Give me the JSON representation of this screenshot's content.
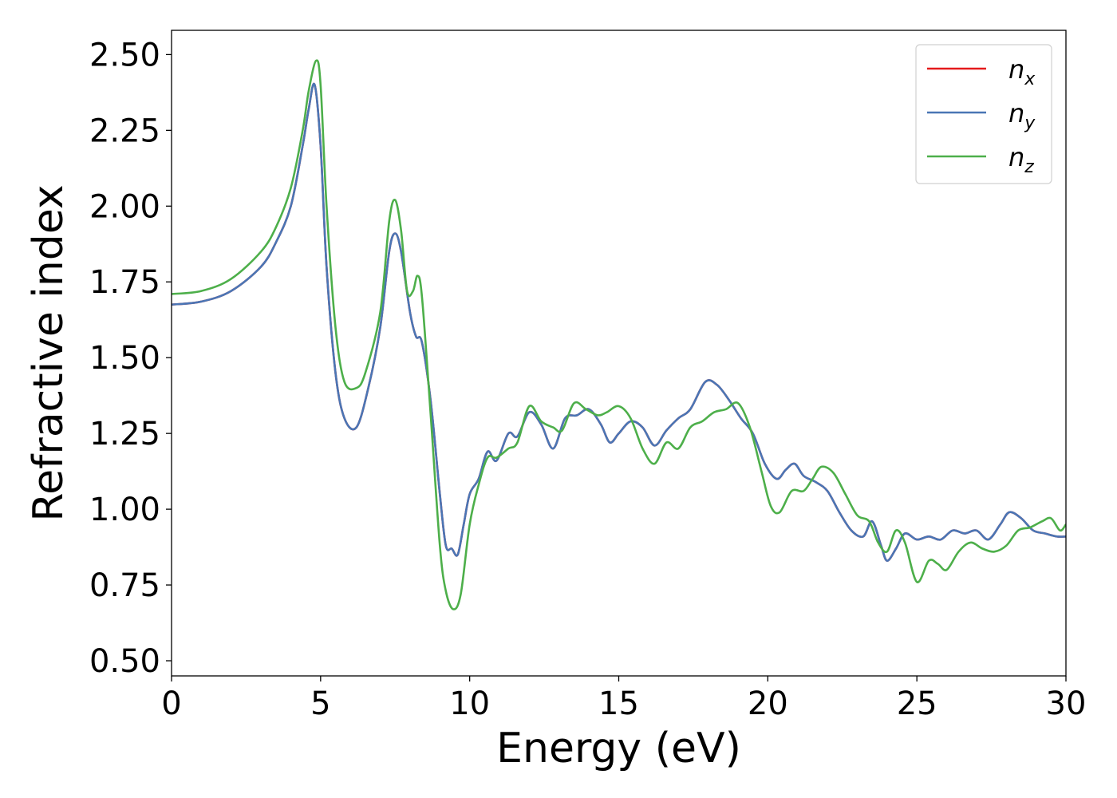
{
  "chart_data": {
    "type": "line",
    "xlabel": "Energy (eV)",
    "ylabel": "Refractive index",
    "xlim": [
      0,
      30
    ],
    "ylim": [
      0.45,
      2.58
    ],
    "xticks": [
      "0",
      "5",
      "10",
      "15",
      "20",
      "25",
      "30"
    ],
    "xtick_values": [
      0,
      5,
      10,
      15,
      20,
      25,
      30
    ],
    "yticks": [
      "0.50",
      "0.75",
      "1.00",
      "1.25",
      "1.50",
      "1.75",
      "2.00",
      "2.25",
      "2.50"
    ],
    "ytick_values": [
      0.5,
      0.75,
      1.0,
      1.25,
      1.5,
      1.75,
      2.0,
      2.25,
      2.5
    ],
    "grid": false,
    "legend": {
      "placement": "top-right"
    },
    "series": [
      {
        "name": "n",
        "subscript": "x",
        "color": "#e41a1c",
        "points": [
          [
            0,
            1.675
          ],
          [
            1,
            1.685
          ],
          [
            2,
            1.72
          ],
          [
            3,
            1.8
          ],
          [
            3.5,
            1.88
          ],
          [
            4,
            2.0
          ],
          [
            4.4,
            2.2
          ],
          [
            4.6,
            2.32
          ],
          [
            4.8,
            2.4
          ],
          [
            5.0,
            2.2
          ],
          [
            5.2,
            1.8
          ],
          [
            5.5,
            1.45
          ],
          [
            5.8,
            1.3
          ],
          [
            6.2,
            1.27
          ],
          [
            6.6,
            1.4
          ],
          [
            7.0,
            1.6
          ],
          [
            7.3,
            1.85
          ],
          [
            7.5,
            1.91
          ],
          [
            7.7,
            1.85
          ],
          [
            8.0,
            1.65
          ],
          [
            8.2,
            1.57
          ],
          [
            8.4,
            1.55
          ],
          [
            8.7,
            1.35
          ],
          [
            9.0,
            1.05
          ],
          [
            9.2,
            0.88
          ],
          [
            9.4,
            0.87
          ],
          [
            9.6,
            0.85
          ],
          [
            9.8,
            0.95
          ],
          [
            10.0,
            1.05
          ],
          [
            10.3,
            1.1
          ],
          [
            10.6,
            1.19
          ],
          [
            10.9,
            1.16
          ],
          [
            11.3,
            1.25
          ],
          [
            11.6,
            1.24
          ],
          [
            12.0,
            1.32
          ],
          [
            12.4,
            1.28
          ],
          [
            12.8,
            1.2
          ],
          [
            13.2,
            1.3
          ],
          [
            13.6,
            1.31
          ],
          [
            14.0,
            1.33
          ],
          [
            14.4,
            1.28
          ],
          [
            14.7,
            1.22
          ],
          [
            15.0,
            1.25
          ],
          [
            15.4,
            1.29
          ],
          [
            15.8,
            1.27
          ],
          [
            16.2,
            1.21
          ],
          [
            16.6,
            1.26
          ],
          [
            17.0,
            1.3
          ],
          [
            17.4,
            1.33
          ],
          [
            17.9,
            1.42
          ],
          [
            18.3,
            1.41
          ],
          [
            18.7,
            1.36
          ],
          [
            19.1,
            1.3
          ],
          [
            19.5,
            1.25
          ],
          [
            19.9,
            1.15
          ],
          [
            20.3,
            1.1
          ],
          [
            20.6,
            1.13
          ],
          [
            20.9,
            1.15
          ],
          [
            21.2,
            1.11
          ],
          [
            21.6,
            1.09
          ],
          [
            22.0,
            1.06
          ],
          [
            22.4,
            0.99
          ],
          [
            22.8,
            0.93
          ],
          [
            23.2,
            0.91
          ],
          [
            23.5,
            0.96
          ],
          [
            23.8,
            0.88
          ],
          [
            24.0,
            0.83
          ],
          [
            24.3,
            0.87
          ],
          [
            24.6,
            0.92
          ],
          [
            25.0,
            0.9
          ],
          [
            25.4,
            0.91
          ],
          [
            25.8,
            0.9
          ],
          [
            26.2,
            0.93
          ],
          [
            26.6,
            0.92
          ],
          [
            27.0,
            0.93
          ],
          [
            27.4,
            0.9
          ],
          [
            27.8,
            0.95
          ],
          [
            28.1,
            0.99
          ],
          [
            28.5,
            0.97
          ],
          [
            28.9,
            0.93
          ],
          [
            29.3,
            0.92
          ],
          [
            29.7,
            0.91
          ],
          [
            30.0,
            0.91
          ]
        ]
      },
      {
        "name": "n",
        "subscript": "y",
        "color": "#4a76b5",
        "points": [
          [
            0,
            1.675
          ],
          [
            1,
            1.685
          ],
          [
            2,
            1.72
          ],
          [
            3,
            1.8
          ],
          [
            3.5,
            1.88
          ],
          [
            4,
            2.0
          ],
          [
            4.4,
            2.2
          ],
          [
            4.6,
            2.32
          ],
          [
            4.8,
            2.4
          ],
          [
            5.0,
            2.2
          ],
          [
            5.2,
            1.8
          ],
          [
            5.5,
            1.45
          ],
          [
            5.8,
            1.3
          ],
          [
            6.2,
            1.27
          ],
          [
            6.6,
            1.4
          ],
          [
            7.0,
            1.6
          ],
          [
            7.3,
            1.85
          ],
          [
            7.5,
            1.91
          ],
          [
            7.7,
            1.85
          ],
          [
            8.0,
            1.65
          ],
          [
            8.2,
            1.57
          ],
          [
            8.4,
            1.55
          ],
          [
            8.7,
            1.35
          ],
          [
            9.0,
            1.05
          ],
          [
            9.2,
            0.88
          ],
          [
            9.4,
            0.87
          ],
          [
            9.6,
            0.85
          ],
          [
            9.8,
            0.95
          ],
          [
            10.0,
            1.05
          ],
          [
            10.3,
            1.1
          ],
          [
            10.6,
            1.19
          ],
          [
            10.9,
            1.16
          ],
          [
            11.3,
            1.25
          ],
          [
            11.6,
            1.24
          ],
          [
            12.0,
            1.32
          ],
          [
            12.4,
            1.28
          ],
          [
            12.8,
            1.2
          ],
          [
            13.2,
            1.3
          ],
          [
            13.6,
            1.31
          ],
          [
            14.0,
            1.33
          ],
          [
            14.4,
            1.28
          ],
          [
            14.7,
            1.22
          ],
          [
            15.0,
            1.25
          ],
          [
            15.4,
            1.29
          ],
          [
            15.8,
            1.27
          ],
          [
            16.2,
            1.21
          ],
          [
            16.6,
            1.26
          ],
          [
            17.0,
            1.3
          ],
          [
            17.4,
            1.33
          ],
          [
            17.9,
            1.42
          ],
          [
            18.3,
            1.41
          ],
          [
            18.7,
            1.36
          ],
          [
            19.1,
            1.3
          ],
          [
            19.5,
            1.25
          ],
          [
            19.9,
            1.15
          ],
          [
            20.3,
            1.1
          ],
          [
            20.6,
            1.13
          ],
          [
            20.9,
            1.15
          ],
          [
            21.2,
            1.11
          ],
          [
            21.6,
            1.09
          ],
          [
            22.0,
            1.06
          ],
          [
            22.4,
            0.99
          ],
          [
            22.8,
            0.93
          ],
          [
            23.2,
            0.91
          ],
          [
            23.5,
            0.96
          ],
          [
            23.8,
            0.88
          ],
          [
            24.0,
            0.83
          ],
          [
            24.3,
            0.87
          ],
          [
            24.6,
            0.92
          ],
          [
            25.0,
            0.9
          ],
          [
            25.4,
            0.91
          ],
          [
            25.8,
            0.9
          ],
          [
            26.2,
            0.93
          ],
          [
            26.6,
            0.92
          ],
          [
            27.0,
            0.93
          ],
          [
            27.4,
            0.9
          ],
          [
            27.8,
            0.95
          ],
          [
            28.1,
            0.99
          ],
          [
            28.5,
            0.97
          ],
          [
            28.9,
            0.93
          ],
          [
            29.3,
            0.92
          ],
          [
            29.7,
            0.91
          ],
          [
            30.0,
            0.91
          ]
        ]
      },
      {
        "name": "n",
        "subscript": "z",
        "color": "#4daf4a",
        "points": [
          [
            0,
            1.71
          ],
          [
            1,
            1.72
          ],
          [
            2,
            1.76
          ],
          [
            3,
            1.85
          ],
          [
            3.5,
            1.93
          ],
          [
            4,
            2.06
          ],
          [
            4.4,
            2.25
          ],
          [
            4.6,
            2.38
          ],
          [
            4.85,
            2.48
          ],
          [
            5.0,
            2.4
          ],
          [
            5.2,
            2.0
          ],
          [
            5.5,
            1.6
          ],
          [
            5.8,
            1.42
          ],
          [
            6.2,
            1.4
          ],
          [
            6.5,
            1.45
          ],
          [
            7.0,
            1.65
          ],
          [
            7.3,
            1.95
          ],
          [
            7.5,
            2.02
          ],
          [
            7.7,
            1.92
          ],
          [
            7.9,
            1.72
          ],
          [
            8.1,
            1.72
          ],
          [
            8.25,
            1.77
          ],
          [
            8.4,
            1.7
          ],
          [
            8.7,
            1.3
          ],
          [
            9.0,
            0.88
          ],
          [
            9.2,
            0.73
          ],
          [
            9.45,
            0.67
          ],
          [
            9.7,
            0.72
          ],
          [
            10.0,
            0.95
          ],
          [
            10.3,
            1.08
          ],
          [
            10.6,
            1.17
          ],
          [
            10.9,
            1.17
          ],
          [
            11.3,
            1.2
          ],
          [
            11.6,
            1.22
          ],
          [
            12.0,
            1.34
          ],
          [
            12.4,
            1.29
          ],
          [
            12.8,
            1.27
          ],
          [
            13.1,
            1.26
          ],
          [
            13.5,
            1.35
          ],
          [
            13.9,
            1.33
          ],
          [
            14.3,
            1.31
          ],
          [
            14.6,
            1.32
          ],
          [
            15.0,
            1.34
          ],
          [
            15.4,
            1.3
          ],
          [
            15.8,
            1.2
          ],
          [
            16.2,
            1.15
          ],
          [
            16.6,
            1.22
          ],
          [
            17.0,
            1.2
          ],
          [
            17.4,
            1.27
          ],
          [
            17.8,
            1.29
          ],
          [
            18.2,
            1.32
          ],
          [
            18.6,
            1.33
          ],
          [
            19.0,
            1.35
          ],
          [
            19.4,
            1.27
          ],
          [
            19.8,
            1.12
          ],
          [
            20.1,
            1.01
          ],
          [
            20.4,
            0.99
          ],
          [
            20.8,
            1.06
          ],
          [
            21.2,
            1.06
          ],
          [
            21.5,
            1.1
          ],
          [
            21.8,
            1.14
          ],
          [
            22.2,
            1.12
          ],
          [
            22.6,
            1.05
          ],
          [
            23.0,
            0.98
          ],
          [
            23.4,
            0.96
          ],
          [
            23.7,
            0.89
          ],
          [
            24.0,
            0.86
          ],
          [
            24.3,
            0.93
          ],
          [
            24.6,
            0.89
          ],
          [
            25.0,
            0.76
          ],
          [
            25.4,
            0.83
          ],
          [
            25.7,
            0.82
          ],
          [
            26.0,
            0.8
          ],
          [
            26.4,
            0.86
          ],
          [
            26.8,
            0.89
          ],
          [
            27.2,
            0.87
          ],
          [
            27.6,
            0.86
          ],
          [
            28.0,
            0.88
          ],
          [
            28.4,
            0.93
          ],
          [
            28.8,
            0.94
          ],
          [
            29.2,
            0.96
          ],
          [
            29.5,
            0.97
          ],
          [
            29.8,
            0.93
          ],
          [
            30.0,
            0.95
          ]
        ]
      }
    ]
  }
}
